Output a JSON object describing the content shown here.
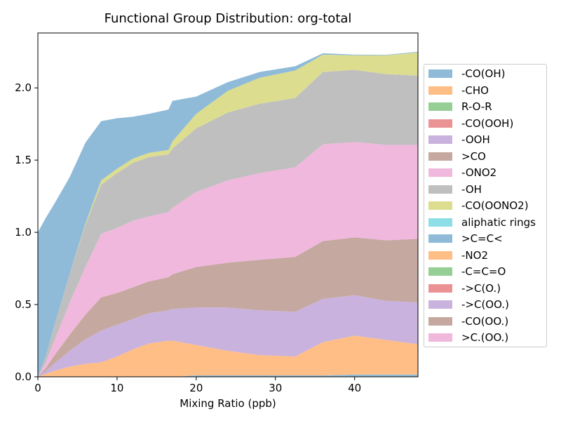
{
  "chart_data": {
    "type": "area",
    "stacked": true,
    "title": "Functional Group Distribution: org-total",
    "xlabel": "Mixing Ratio (ppb)",
    "ylabel": "",
    "xlim": [
      0,
      48
    ],
    "ylim": [
      0,
      2.38
    ],
    "xticks": [
      0,
      10,
      20,
      30,
      40
    ],
    "yticks": [
      0.0,
      0.5,
      1.0,
      1.5,
      2.0
    ],
    "xtick_labels": [
      "0",
      "10",
      "20",
      "30",
      "40"
    ],
    "ytick_labels": [
      "0.0",
      "0.5",
      "1.0",
      "1.5",
      "2.0"
    ],
    "legend_position": "right",
    "x": [
      0,
      1,
      2,
      4,
      6,
      8,
      10,
      12,
      14,
      16.5,
      17,
      20,
      24,
      28,
      32.5,
      36,
      40,
      44,
      48
    ],
    "series": [
      {
        "name": ">C=C<",
        "color": "#8fbbd9",
        "values": [
          0,
          0,
          0,
          0,
          0,
          0,
          0,
          0,
          0,
          0,
          0,
          0.01,
          0.01,
          0.01,
          0.01,
          0.01,
          0.015,
          0.015,
          0.015
        ]
      },
      {
        "name": "-CHO",
        "color": "#ffbe86",
        "values": [
          0,
          0.02,
          0.04,
          0.07,
          0.09,
          0.1,
          0.14,
          0.19,
          0.23,
          0.25,
          0.25,
          0.21,
          0.17,
          0.14,
          0.13,
          0.23,
          0.27,
          0.24,
          0.21
        ]
      },
      {
        "name": "-OOH",
        "color": "#c9b2dd",
        "values": [
          0,
          0.02,
          0.05,
          0.11,
          0.17,
          0.22,
          0.22,
          0.21,
          0.21,
          0.21,
          0.22,
          0.26,
          0.3,
          0.31,
          0.31,
          0.3,
          0.28,
          0.27,
          0.29
        ]
      },
      {
        "name": ">CO",
        "color": "#c5a8a0",
        "values": [
          0,
          0.02,
          0.05,
          0.11,
          0.17,
          0.23,
          0.22,
          0.22,
          0.22,
          0.23,
          0.24,
          0.28,
          0.31,
          0.35,
          0.38,
          0.4,
          0.4,
          0.42,
          0.44
        ]
      },
      {
        "name": "-ONO2",
        "color": "#f0b8dd",
        "values": [
          0,
          0.04,
          0.1,
          0.22,
          0.33,
          0.44,
          0.45,
          0.46,
          0.45,
          0.45,
          0.46,
          0.52,
          0.57,
          0.6,
          0.62,
          0.67,
          0.66,
          0.66,
          0.65
        ]
      },
      {
        "name": "-OH",
        "color": "#bfbfbf",
        "values": [
          0,
          0.04,
          0.1,
          0.2,
          0.29,
          0.34,
          0.38,
          0.4,
          0.41,
          0.4,
          0.41,
          0.44,
          0.47,
          0.48,
          0.48,
          0.5,
          0.5,
          0.49,
          0.48
        ]
      },
      {
        "name": "-CO(OONO2)",
        "color": "#dcdd8f",
        "values": [
          0,
          0,
          0,
          0,
          0.01,
          0.03,
          0.03,
          0.03,
          0.03,
          0.03,
          0.05,
          0.1,
          0.15,
          0.18,
          0.19,
          0.12,
          0.1,
          0.13,
          0.16
        ]
      },
      {
        "name": "-CO(OH)",
        "color": "#8fbbd9",
        "values": [
          1.0,
          0.96,
          0.85,
          0.67,
          0.56,
          0.41,
          0.35,
          0.29,
          0.27,
          0.28,
          0.28,
          0.12,
          0.06,
          0.04,
          0.03,
          0.01,
          0.005,
          0.004,
          0.005
        ]
      }
    ],
    "legend": [
      "-CO(OH)",
      "-CHO",
      "R-O-R",
      "-CO(OOH)",
      "-OOH",
      ">CO",
      "-ONO2",
      "-OH",
      "-CO(OONO2)",
      "aliphatic rings",
      ">C=C<",
      "-NO2",
      "-C=C=O",
      "->C(O.)",
      "->C(OO.)",
      "-CO(OO.)",
      ">C.(OO.)"
    ],
    "legend_colors": [
      "#8fbbd9",
      "#ffbe86",
      "#95cf95",
      "#eb9394",
      "#c9b2dd",
      "#c5a8a0",
      "#f0b8dd",
      "#bfbfbf",
      "#dcdd8f",
      "#8ddee6",
      "#8fbbd9",
      "#ffbe86",
      "#95cf95",
      "#eb9394",
      "#c9b2dd",
      "#c5a8a0",
      "#f0b8dd"
    ]
  }
}
